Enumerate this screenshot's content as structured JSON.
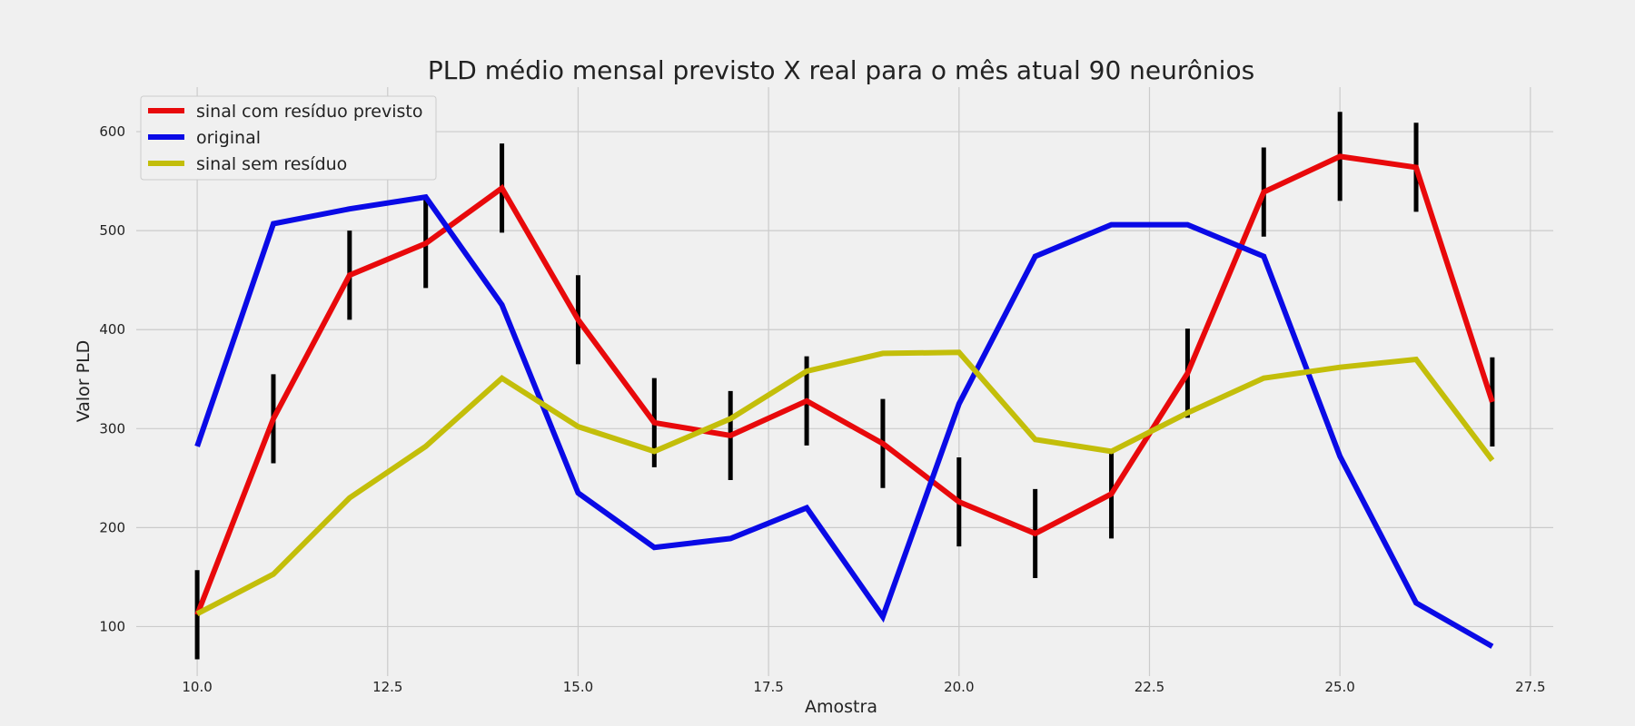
{
  "chart_data": {
    "type": "line",
    "title": "PLD médio mensal previsto X real para o mês atual 90 neurônios",
    "xlabel": "Amostra",
    "ylabel": "Valor PLD",
    "xlim": [
      9.2,
      27.8
    ],
    "ylim": [
      50,
      645
    ],
    "x_ticks": [
      "10.0",
      "12.5",
      "15.0",
      "17.5",
      "20.0",
      "22.5",
      "25.0",
      "27.5"
    ],
    "y_ticks": [
      "100",
      "200",
      "300",
      "400",
      "500",
      "600"
    ],
    "grid": true,
    "legend_position": "top-left",
    "x": [
      10,
      11,
      12,
      13,
      14,
      15,
      16,
      17,
      18,
      19,
      20,
      21,
      22,
      23,
      24,
      25,
      26,
      27
    ],
    "series": [
      {
        "name": "sinal com resíduo previsto",
        "color": "#e8090b",
        "values": [
          112,
          310,
          455,
          487,
          543,
          410,
          306,
          293,
          328,
          285,
          226,
          194,
          234,
          356,
          539,
          575,
          564,
          327
        ],
        "error": 45
      },
      {
        "name": "original",
        "color": "#0a0ae6",
        "values": [
          282,
          507,
          522,
          534,
          425,
          235,
          180,
          189,
          220,
          110,
          325,
          474,
          506,
          506,
          474,
          272,
          124,
          80
        ]
      },
      {
        "name": "sinal sem resíduo",
        "color": "#c3be0a",
        "values": [
          113,
          153,
          230,
          282,
          351,
          302,
          277,
          310,
          358,
          376,
          377,
          289,
          277,
          316,
          351,
          362,
          370,
          268
        ]
      }
    ]
  }
}
